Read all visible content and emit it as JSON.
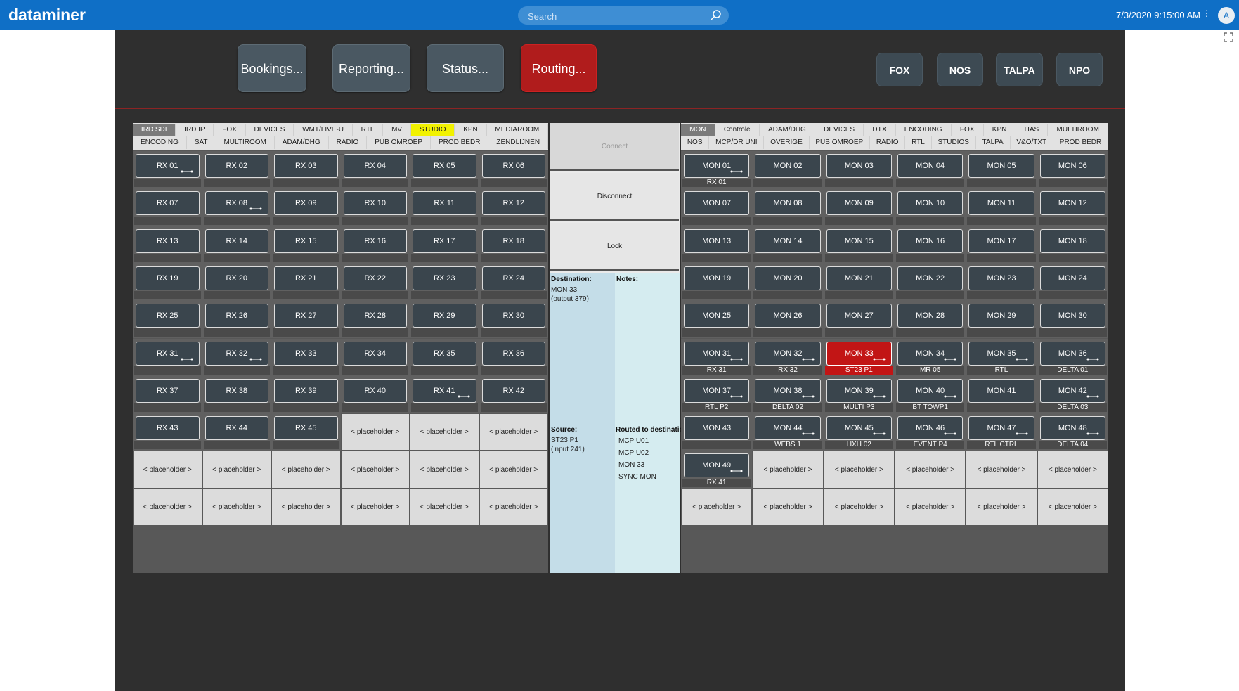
{
  "topbar": {
    "logo": "dataminer",
    "search_placeholder": "Search",
    "datetime": "7/3/2020 9:15:00 AM",
    "menu": "⋮",
    "avatar": "A"
  },
  "nav": {
    "buttons": [
      "Bookings...",
      "Reporting...",
      "Status...",
      "Routing..."
    ],
    "active": "Routing...",
    "brands": [
      "FOX",
      "NOS",
      "TALPA",
      "NPO"
    ],
    "active_color": "#b01c1c"
  },
  "left_panel": {
    "tabs_row1": [
      "IRD SDI",
      "IRD IP",
      "FOX",
      "DEVICES",
      "WMT/LIVE-U",
      "RTL",
      "MV",
      "STUDIO",
      "KPN",
      "MEDIAROOM"
    ],
    "tabs_row2": [
      "ENCODING",
      "SAT",
      "MULTIROOM",
      "ADAM/DHG",
      "RADIO",
      "PUB OMROEP",
      "PROD BEDR",
      "ZENDLIJNEN"
    ],
    "selected_tab": "IRD SDI",
    "highlighted_tab": "STUDIO",
    "cells": [
      {
        "name": "RX 01",
        "link": true,
        "label": ""
      },
      {
        "name": "RX 02",
        "link": false,
        "label": ""
      },
      {
        "name": "RX 03",
        "link": false,
        "label": ""
      },
      {
        "name": "RX 04",
        "link": false,
        "label": ""
      },
      {
        "name": "RX 05",
        "link": false,
        "label": ""
      },
      {
        "name": "RX 06",
        "link": false,
        "label": ""
      },
      {
        "name": "RX 07",
        "link": false,
        "label": ""
      },
      {
        "name": "RX 08",
        "link": true,
        "label": ""
      },
      {
        "name": "RX 09",
        "link": false,
        "label": ""
      },
      {
        "name": "RX 10",
        "link": false,
        "label": ""
      },
      {
        "name": "RX 11",
        "link": false,
        "label": ""
      },
      {
        "name": "RX 12",
        "link": false,
        "label": ""
      },
      {
        "name": "RX 13",
        "link": false,
        "label": ""
      },
      {
        "name": "RX 14",
        "link": false,
        "label": ""
      },
      {
        "name": "RX 15",
        "link": false,
        "label": ""
      },
      {
        "name": "RX 16",
        "link": false,
        "label": ""
      },
      {
        "name": "RX 17",
        "link": false,
        "label": ""
      },
      {
        "name": "RX 18",
        "link": false,
        "label": ""
      },
      {
        "name": "RX 19",
        "link": false,
        "label": ""
      },
      {
        "name": "RX 20",
        "link": false,
        "label": ""
      },
      {
        "name": "RX 21",
        "link": false,
        "label": ""
      },
      {
        "name": "RX 22",
        "link": false,
        "label": ""
      },
      {
        "name": "RX 23",
        "link": false,
        "label": ""
      },
      {
        "name": "RX 24",
        "link": false,
        "label": ""
      },
      {
        "name": "RX 25",
        "link": false,
        "label": ""
      },
      {
        "name": "RX 26",
        "link": false,
        "label": ""
      },
      {
        "name": "RX 27",
        "link": false,
        "label": ""
      },
      {
        "name": "RX 28",
        "link": false,
        "label": ""
      },
      {
        "name": "RX 29",
        "link": false,
        "label": ""
      },
      {
        "name": "RX 30",
        "link": false,
        "label": ""
      },
      {
        "name": "RX 31",
        "link": true,
        "label": ""
      },
      {
        "name": "RX 32",
        "link": true,
        "label": ""
      },
      {
        "name": "RX 33",
        "link": false,
        "label": ""
      },
      {
        "name": "RX 34",
        "link": false,
        "label": ""
      },
      {
        "name": "RX 35",
        "link": false,
        "label": ""
      },
      {
        "name": "RX 36",
        "link": false,
        "label": ""
      },
      {
        "name": "RX 37",
        "link": false,
        "label": ""
      },
      {
        "name": "RX 38",
        "link": false,
        "label": ""
      },
      {
        "name": "RX 39",
        "link": false,
        "label": ""
      },
      {
        "name": "RX 40",
        "link": false,
        "label": ""
      },
      {
        "name": "RX 41",
        "link": true,
        "label": ""
      },
      {
        "name": "RX 42",
        "link": false,
        "label": ""
      },
      {
        "name": "RX 43",
        "link": false,
        "label": ""
      },
      {
        "name": "RX 44",
        "link": false,
        "label": ""
      },
      {
        "name": "RX 45",
        "link": false,
        "label": ""
      },
      {
        "placeholder": "< placeholder >"
      },
      {
        "placeholder": "< placeholder >"
      },
      {
        "placeholder": "< placeholder >"
      },
      {
        "placeholder": "< placeholder >"
      },
      {
        "placeholder": "< placeholder >"
      },
      {
        "placeholder": "< placeholder >"
      },
      {
        "placeholder": "< placeholder >"
      },
      {
        "placeholder": "< placeholder >"
      },
      {
        "placeholder": "< placeholder >"
      },
      {
        "placeholder": "< placeholder >"
      },
      {
        "placeholder": "< placeholder >"
      },
      {
        "placeholder": "< placeholder >"
      },
      {
        "placeholder": "< placeholder >"
      },
      {
        "placeholder": "< placeholder >"
      },
      {
        "placeholder": "< placeholder >"
      }
    ]
  },
  "middle": {
    "connect": "Connect",
    "disconnect": "Disconnect",
    "lock": "Lock",
    "destination_header": "Destination:",
    "destination_text": "MON 33\n(output 379)",
    "notes_header": "Notes:",
    "source_header": "Source:",
    "source_text": "ST23 P1\n(input 241)",
    "routed_header": "Routed to destination",
    "routed_list": [
      "MCP U01",
      "MCP U02",
      "MON 33",
      "SYNC MON"
    ]
  },
  "right_panel": {
    "tabs_row1": [
      "MON",
      "Controle",
      "ADAM/DHG",
      "DEVICES",
      "DTX",
      "ENCODING",
      "FOX",
      "KPN",
      "HAS",
      "MULTIROOM"
    ],
    "tabs_row2": [
      "NOS",
      "MCP/DR UNI",
      "OVERIGE",
      "PUB OMROEP",
      "RADIO",
      "RTL",
      "STUDIOS",
      "TALPA",
      "V&O/TXT",
      "PROD BEDR"
    ],
    "selected_tab": "MON",
    "cells": [
      {
        "name": "MON 01",
        "link": true,
        "label": "RX 01"
      },
      {
        "name": "MON 02",
        "link": false,
        "label": ""
      },
      {
        "name": "MON 03",
        "link": false,
        "label": ""
      },
      {
        "name": "MON 04",
        "link": false,
        "label": ""
      },
      {
        "name": "MON 05",
        "link": false,
        "label": ""
      },
      {
        "name": "MON 06",
        "link": false,
        "label": ""
      },
      {
        "name": "MON 07",
        "link": false,
        "label": ""
      },
      {
        "name": "MON 08",
        "link": false,
        "label": ""
      },
      {
        "name": "MON 09",
        "link": false,
        "label": ""
      },
      {
        "name": "MON 10",
        "link": false,
        "label": ""
      },
      {
        "name": "MON 11",
        "link": false,
        "label": ""
      },
      {
        "name": "MON 12",
        "link": false,
        "label": ""
      },
      {
        "name": "MON 13",
        "link": false,
        "label": ""
      },
      {
        "name": "MON 14",
        "link": false,
        "label": ""
      },
      {
        "name": "MON 15",
        "link": false,
        "label": ""
      },
      {
        "name": "MON 16",
        "link": false,
        "label": ""
      },
      {
        "name": "MON 17",
        "link": false,
        "label": ""
      },
      {
        "name": "MON 18",
        "link": false,
        "label": ""
      },
      {
        "name": "MON 19",
        "link": false,
        "label": ""
      },
      {
        "name": "MON 20",
        "link": false,
        "label": ""
      },
      {
        "name": "MON 21",
        "link": false,
        "label": ""
      },
      {
        "name": "MON 22",
        "link": false,
        "label": ""
      },
      {
        "name": "MON 23",
        "link": false,
        "label": ""
      },
      {
        "name": "MON 24",
        "link": false,
        "label": ""
      },
      {
        "name": "MON 25",
        "link": false,
        "label": ""
      },
      {
        "name": "MON 26",
        "link": false,
        "label": ""
      },
      {
        "name": "MON 27",
        "link": false,
        "label": ""
      },
      {
        "name": "MON 28",
        "link": false,
        "label": ""
      },
      {
        "name": "MON 29",
        "link": false,
        "label": ""
      },
      {
        "name": "MON 30",
        "link": false,
        "label": ""
      },
      {
        "name": "MON 31",
        "link": true,
        "label": "RX 31"
      },
      {
        "name": "MON 32",
        "link": true,
        "label": "RX 32"
      },
      {
        "name": "MON 33",
        "link": true,
        "label": "ST23 P1",
        "selected": true
      },
      {
        "name": "MON 34",
        "link": true,
        "label": "MR 05"
      },
      {
        "name": "MON 35",
        "link": true,
        "label": "RTL"
      },
      {
        "name": "MON 36",
        "link": true,
        "label": "DELTA 01"
      },
      {
        "name": "MON 37",
        "link": true,
        "label": "RTL P2"
      },
      {
        "name": "MON 38",
        "link": true,
        "label": "DELTA 02"
      },
      {
        "name": "MON 39",
        "link": true,
        "label": "MULTI P3"
      },
      {
        "name": "MON 40",
        "link": true,
        "label": "BT TOWP1"
      },
      {
        "name": "MON 41",
        "link": false,
        "label": ""
      },
      {
        "name": "MON 42",
        "link": true,
        "label": "DELTA 03"
      },
      {
        "name": "MON 43",
        "link": false,
        "label": ""
      },
      {
        "name": "MON 44",
        "link": true,
        "label": "WEBS 1"
      },
      {
        "name": "MON 45",
        "link": true,
        "label": "HXH 02"
      },
      {
        "name": "MON 46",
        "link": true,
        "label": "EVENT P4"
      },
      {
        "name": "MON 47",
        "link": true,
        "label": "RTL CTRL"
      },
      {
        "name": "MON 48",
        "link": true,
        "label": "DELTA 04"
      },
      {
        "name": "MON 49",
        "link": true,
        "label": "RX 41"
      },
      {
        "placeholder": "< placeholder >"
      },
      {
        "placeholder": "< placeholder >"
      },
      {
        "placeholder": "< placeholder >"
      },
      {
        "placeholder": "< placeholder >"
      },
      {
        "placeholder": "< placeholder >"
      },
      {
        "placeholder": "< placeholder >"
      },
      {
        "placeholder": "< placeholder >"
      },
      {
        "placeholder": "< placeholder >"
      },
      {
        "placeholder": "< placeholder >"
      },
      {
        "placeholder": "< placeholder >"
      },
      {
        "placeholder": "< placeholder >"
      }
    ]
  }
}
